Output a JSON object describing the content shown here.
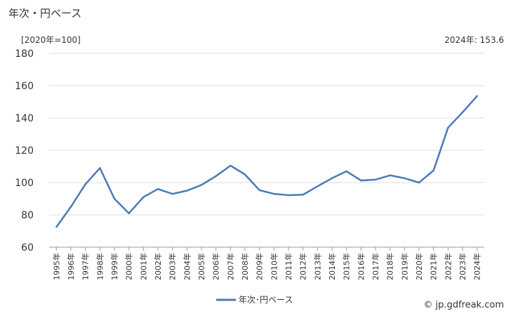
{
  "header": {
    "title": "年次・円ベース",
    "unit": "[2020年=100]",
    "latest": "2024年: 153.6"
  },
  "footer": {
    "source": "© jp.gdfreak.com"
  },
  "colors": {
    "line": "#4a7ab8",
    "grid": "#dddddd",
    "axis": "#999999"
  },
  "chart_data": {
    "type": "line",
    "title": "",
    "xlabel": "",
    "ylabel": "",
    "ylim": [
      60,
      180
    ],
    "yticks": [
      60,
      80,
      100,
      120,
      140,
      160,
      180
    ],
    "grid": true,
    "legend": "bottom-center",
    "categories": [
      "1995年",
      "1996年",
      "1997年",
      "1998年",
      "1999年",
      "2000年",
      "2001年",
      "2002年",
      "2003年",
      "2004年",
      "2005年",
      "2006年",
      "2007年",
      "2008年",
      "2009年",
      "2010年",
      "2011年",
      "2012年",
      "2013年",
      "2014年",
      "2015年",
      "2016年",
      "2017年",
      "2018年",
      "2019年",
      "2020年",
      "2021年",
      "2022年",
      "2023年",
      "2024年"
    ],
    "series": [
      {
        "name": "年次･円ベース",
        "values": [
          72.5,
          85,
          99,
          109,
          90,
          81,
          91,
          96,
          93,
          95,
          98.5,
          104,
          110.5,
          105,
          95.3,
          93,
          92.2,
          92.5,
          97.7,
          102.7,
          107,
          101.3,
          101.8,
          104.5,
          102.7,
          100,
          107.5,
          134,
          143.5,
          153.6
        ]
      }
    ]
  }
}
